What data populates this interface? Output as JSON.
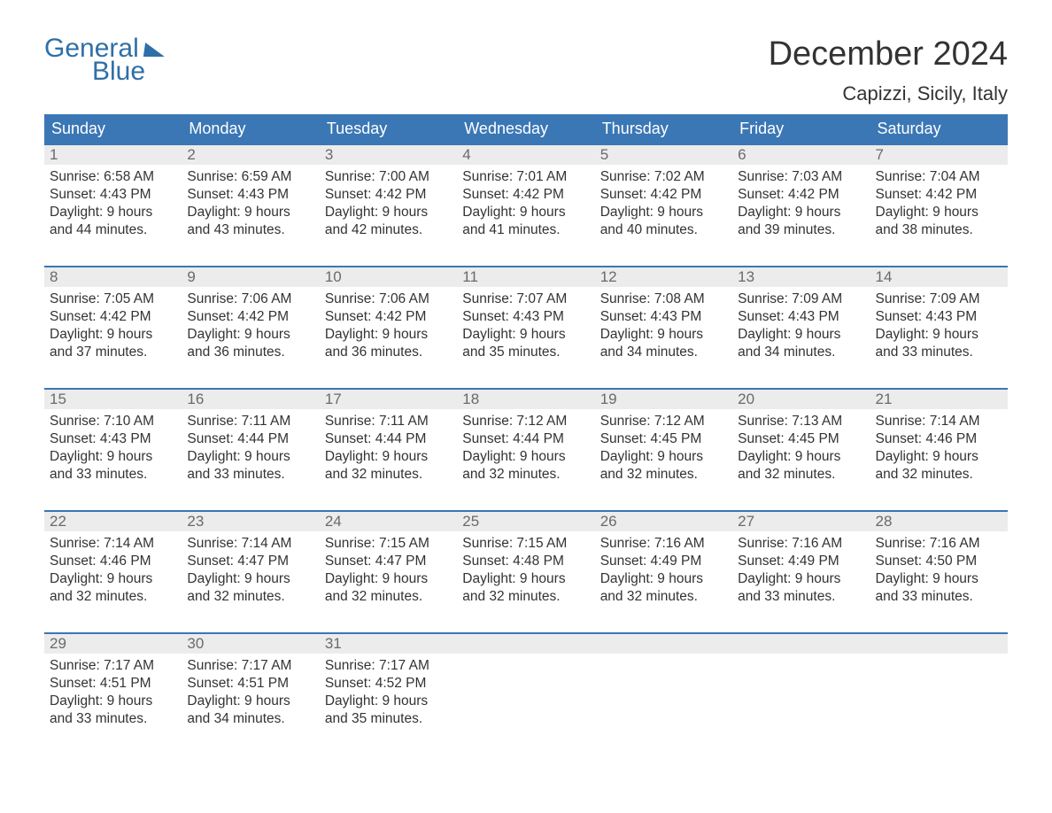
{
  "brand": {
    "line1": "General",
    "line2": "Blue"
  },
  "header": {
    "title": "December 2024",
    "location": "Capizzi, Sicily, Italy"
  },
  "colors": {
    "header_bg": "#3b77b5",
    "header_text": "#ffffff",
    "accent_line": "#3b77b5",
    "daynum_bg": "#ececec",
    "daynum_text": "#6a6a6a",
    "body_text": "#333333",
    "brand": "#2f6fa8",
    "page_bg": "#ffffff"
  },
  "calendar": {
    "type": "table",
    "day_labels": [
      "Sunday",
      "Monday",
      "Tuesday",
      "Wednesday",
      "Thursday",
      "Friday",
      "Saturday"
    ],
    "weeks": [
      [
        {
          "n": "1",
          "sunrise": "Sunrise: 6:58 AM",
          "sunset": "Sunset: 4:43 PM",
          "d1": "Daylight: 9 hours",
          "d2": "and 44 minutes."
        },
        {
          "n": "2",
          "sunrise": "Sunrise: 6:59 AM",
          "sunset": "Sunset: 4:43 PM",
          "d1": "Daylight: 9 hours",
          "d2": "and 43 minutes."
        },
        {
          "n": "3",
          "sunrise": "Sunrise: 7:00 AM",
          "sunset": "Sunset: 4:42 PM",
          "d1": "Daylight: 9 hours",
          "d2": "and 42 minutes."
        },
        {
          "n": "4",
          "sunrise": "Sunrise: 7:01 AM",
          "sunset": "Sunset: 4:42 PM",
          "d1": "Daylight: 9 hours",
          "d2": "and 41 minutes."
        },
        {
          "n": "5",
          "sunrise": "Sunrise: 7:02 AM",
          "sunset": "Sunset: 4:42 PM",
          "d1": "Daylight: 9 hours",
          "d2": "and 40 minutes."
        },
        {
          "n": "6",
          "sunrise": "Sunrise: 7:03 AM",
          "sunset": "Sunset: 4:42 PM",
          "d1": "Daylight: 9 hours",
          "d2": "and 39 minutes."
        },
        {
          "n": "7",
          "sunrise": "Sunrise: 7:04 AM",
          "sunset": "Sunset: 4:42 PM",
          "d1": "Daylight: 9 hours",
          "d2": "and 38 minutes."
        }
      ],
      [
        {
          "n": "8",
          "sunrise": "Sunrise: 7:05 AM",
          "sunset": "Sunset: 4:42 PM",
          "d1": "Daylight: 9 hours",
          "d2": "and 37 minutes."
        },
        {
          "n": "9",
          "sunrise": "Sunrise: 7:06 AM",
          "sunset": "Sunset: 4:42 PM",
          "d1": "Daylight: 9 hours",
          "d2": "and 36 minutes."
        },
        {
          "n": "10",
          "sunrise": "Sunrise: 7:06 AM",
          "sunset": "Sunset: 4:42 PM",
          "d1": "Daylight: 9 hours",
          "d2": "and 36 minutes."
        },
        {
          "n": "11",
          "sunrise": "Sunrise: 7:07 AM",
          "sunset": "Sunset: 4:43 PM",
          "d1": "Daylight: 9 hours",
          "d2": "and 35 minutes."
        },
        {
          "n": "12",
          "sunrise": "Sunrise: 7:08 AM",
          "sunset": "Sunset: 4:43 PM",
          "d1": "Daylight: 9 hours",
          "d2": "and 34 minutes."
        },
        {
          "n": "13",
          "sunrise": "Sunrise: 7:09 AM",
          "sunset": "Sunset: 4:43 PM",
          "d1": "Daylight: 9 hours",
          "d2": "and 34 minutes."
        },
        {
          "n": "14",
          "sunrise": "Sunrise: 7:09 AM",
          "sunset": "Sunset: 4:43 PM",
          "d1": "Daylight: 9 hours",
          "d2": "and 33 minutes."
        }
      ],
      [
        {
          "n": "15",
          "sunrise": "Sunrise: 7:10 AM",
          "sunset": "Sunset: 4:43 PM",
          "d1": "Daylight: 9 hours",
          "d2": "and 33 minutes."
        },
        {
          "n": "16",
          "sunrise": "Sunrise: 7:11 AM",
          "sunset": "Sunset: 4:44 PM",
          "d1": "Daylight: 9 hours",
          "d2": "and 33 minutes."
        },
        {
          "n": "17",
          "sunrise": "Sunrise: 7:11 AM",
          "sunset": "Sunset: 4:44 PM",
          "d1": "Daylight: 9 hours",
          "d2": "and 32 minutes."
        },
        {
          "n": "18",
          "sunrise": "Sunrise: 7:12 AM",
          "sunset": "Sunset: 4:44 PM",
          "d1": "Daylight: 9 hours",
          "d2": "and 32 minutes."
        },
        {
          "n": "19",
          "sunrise": "Sunrise: 7:12 AM",
          "sunset": "Sunset: 4:45 PM",
          "d1": "Daylight: 9 hours",
          "d2": "and 32 minutes."
        },
        {
          "n": "20",
          "sunrise": "Sunrise: 7:13 AM",
          "sunset": "Sunset: 4:45 PM",
          "d1": "Daylight: 9 hours",
          "d2": "and 32 minutes."
        },
        {
          "n": "21",
          "sunrise": "Sunrise: 7:14 AM",
          "sunset": "Sunset: 4:46 PM",
          "d1": "Daylight: 9 hours",
          "d2": "and 32 minutes."
        }
      ],
      [
        {
          "n": "22",
          "sunrise": "Sunrise: 7:14 AM",
          "sunset": "Sunset: 4:46 PM",
          "d1": "Daylight: 9 hours",
          "d2": "and 32 minutes."
        },
        {
          "n": "23",
          "sunrise": "Sunrise: 7:14 AM",
          "sunset": "Sunset: 4:47 PM",
          "d1": "Daylight: 9 hours",
          "d2": "and 32 minutes."
        },
        {
          "n": "24",
          "sunrise": "Sunrise: 7:15 AM",
          "sunset": "Sunset: 4:47 PM",
          "d1": "Daylight: 9 hours",
          "d2": "and 32 minutes."
        },
        {
          "n": "25",
          "sunrise": "Sunrise: 7:15 AM",
          "sunset": "Sunset: 4:48 PM",
          "d1": "Daylight: 9 hours",
          "d2": "and 32 minutes."
        },
        {
          "n": "26",
          "sunrise": "Sunrise: 7:16 AM",
          "sunset": "Sunset: 4:49 PM",
          "d1": "Daylight: 9 hours",
          "d2": "and 32 minutes."
        },
        {
          "n": "27",
          "sunrise": "Sunrise: 7:16 AM",
          "sunset": "Sunset: 4:49 PM",
          "d1": "Daylight: 9 hours",
          "d2": "and 33 minutes."
        },
        {
          "n": "28",
          "sunrise": "Sunrise: 7:16 AM",
          "sunset": "Sunset: 4:50 PM",
          "d1": "Daylight: 9 hours",
          "d2": "and 33 minutes."
        }
      ],
      [
        {
          "n": "29",
          "sunrise": "Sunrise: 7:17 AM",
          "sunset": "Sunset: 4:51 PM",
          "d1": "Daylight: 9 hours",
          "d2": "and 33 minutes."
        },
        {
          "n": "30",
          "sunrise": "Sunrise: 7:17 AM",
          "sunset": "Sunset: 4:51 PM",
          "d1": "Daylight: 9 hours",
          "d2": "and 34 minutes."
        },
        {
          "n": "31",
          "sunrise": "Sunrise: 7:17 AM",
          "sunset": "Sunset: 4:52 PM",
          "d1": "Daylight: 9 hours",
          "d2": "and 35 minutes."
        },
        {
          "n": "",
          "sunrise": "",
          "sunset": "",
          "d1": "",
          "d2": ""
        },
        {
          "n": "",
          "sunrise": "",
          "sunset": "",
          "d1": "",
          "d2": ""
        },
        {
          "n": "",
          "sunrise": "",
          "sunset": "",
          "d1": "",
          "d2": ""
        },
        {
          "n": "",
          "sunrise": "",
          "sunset": "",
          "d1": "",
          "d2": ""
        }
      ]
    ]
  }
}
